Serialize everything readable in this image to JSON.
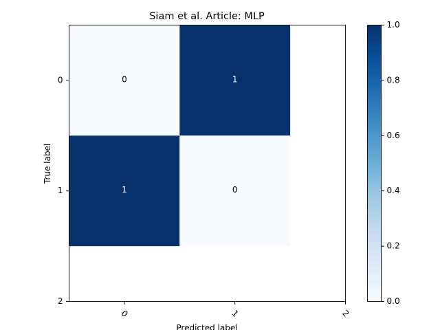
{
  "chart_data": {
    "type": "heatmap",
    "title": "Siam et al. Article: MLP",
    "xlabel": "Predicted label",
    "ylabel": "True label",
    "x_ticks": [
      "0",
      "1",
      "2"
    ],
    "y_ticks": [
      "0",
      "1",
      "2"
    ],
    "x_range": [
      -0.5,
      2
    ],
    "y_range": [
      -0.5,
      2
    ],
    "cells": [
      {
        "row": 0,
        "col": 0,
        "value": 0,
        "label": "0"
      },
      {
        "row": 0,
        "col": 1,
        "value": 1,
        "label": "1"
      },
      {
        "row": 1,
        "col": 0,
        "value": 1,
        "label": "1"
      },
      {
        "row": 1,
        "col": 1,
        "value": 0,
        "label": "0"
      }
    ],
    "colorbar": {
      "range": [
        0.0,
        1.0
      ],
      "ticks": [
        "0.0",
        "0.2",
        "0.4",
        "0.6",
        "0.8",
        "1.0"
      ],
      "colormap": "Blues",
      "low_color": "#f7fbff",
      "high_color": "#08306b"
    },
    "grid": false,
    "x_tick_rotation": 45
  }
}
